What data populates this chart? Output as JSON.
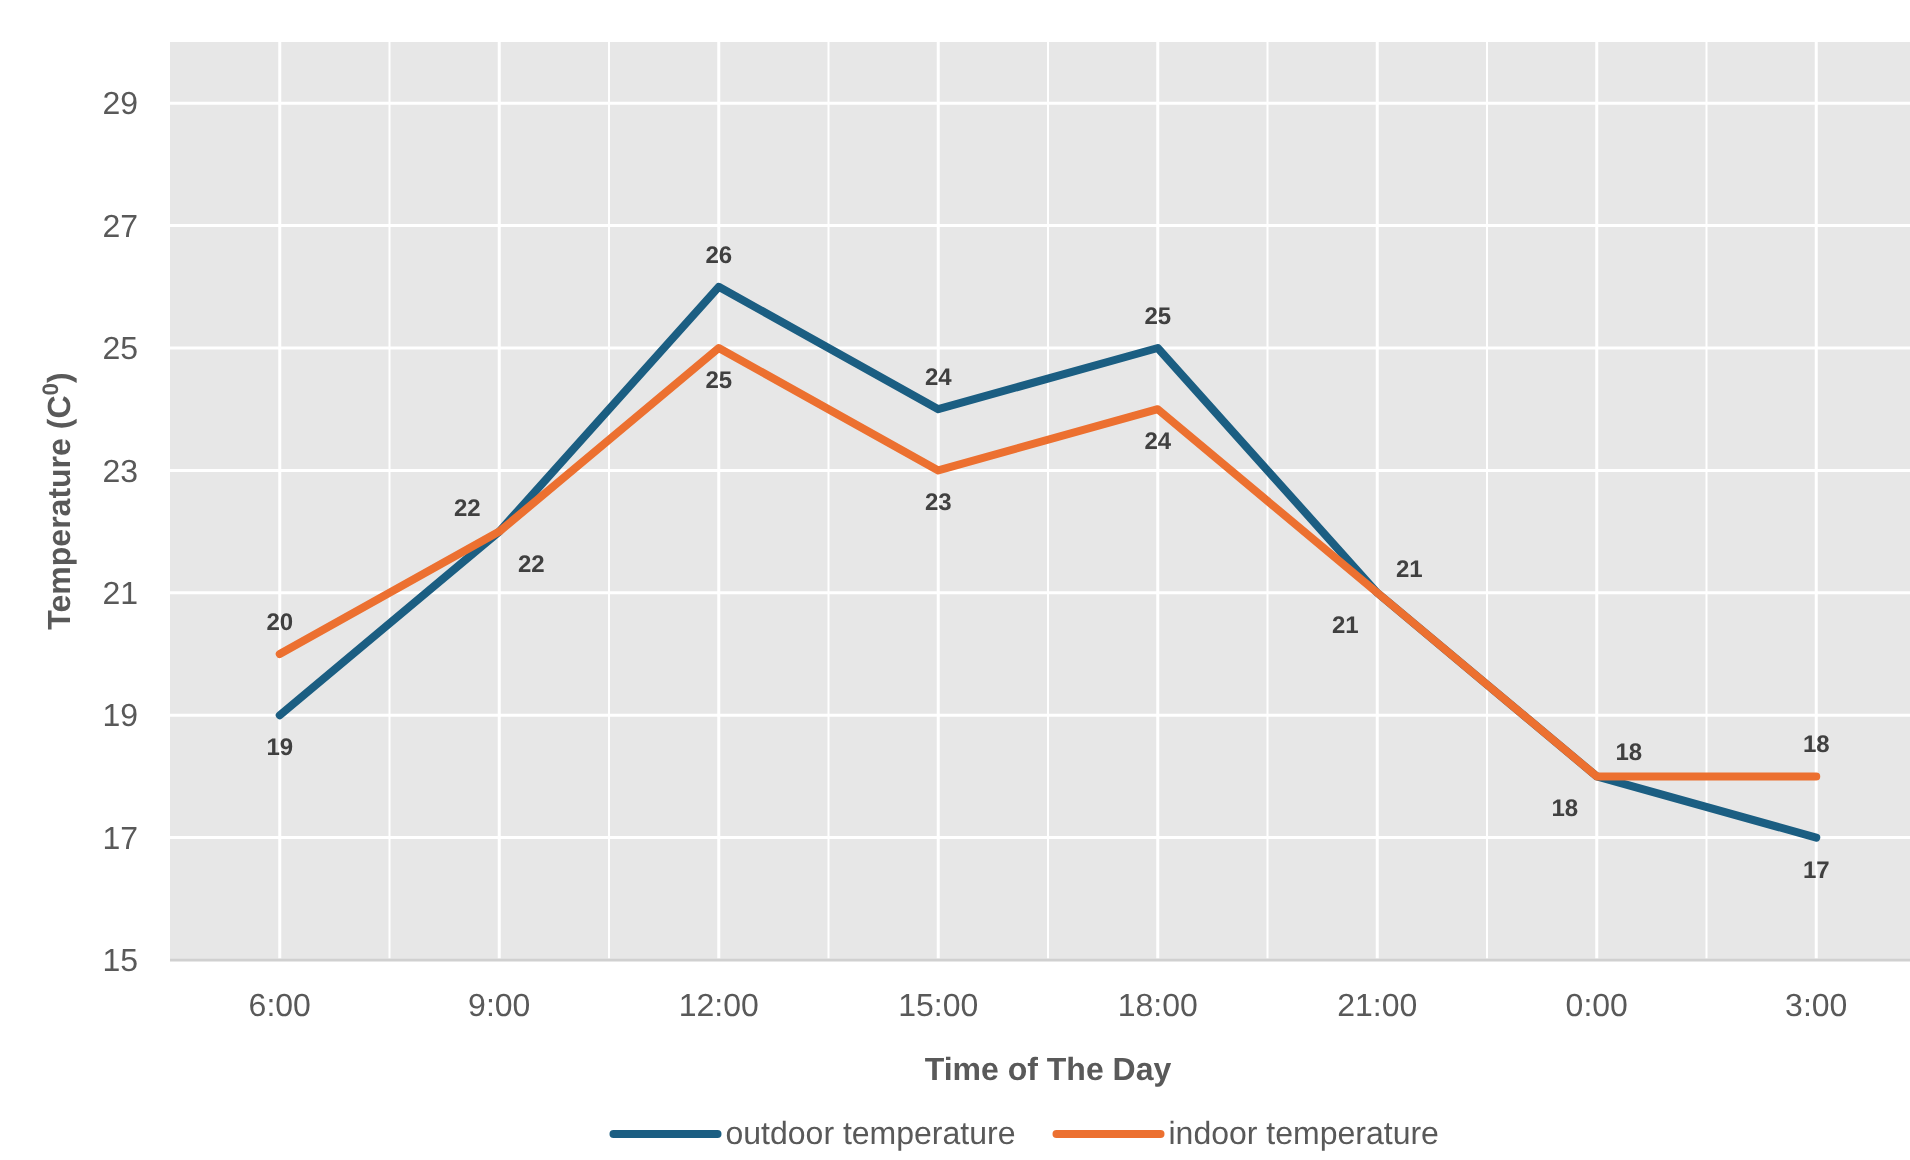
{
  "chart_data": {
    "type": "line",
    "xlabel": "Time of The Day",
    "ylabel": "Temperature (C$^{0}$)",
    "categories": [
      "6:00",
      "9:00",
      "12:00",
      "15:00",
      "18:00",
      "21:00",
      "0:00",
      "3:00"
    ],
    "series": [
      {
        "name": "outdoor temperature",
        "color": "#1b5e82",
        "values": [
          19,
          22,
          26,
          24,
          25,
          21,
          18,
          17
        ]
      },
      {
        "name": "indoor temperature",
        "color": "#ec7030",
        "values": [
          20,
          22,
          25,
          23,
          24,
          21,
          18,
          18
        ]
      }
    ],
    "ylim": [
      15,
      30
    ],
    "yticks": [
      15,
      17,
      19,
      21,
      23,
      25,
      27,
      29
    ],
    "grid": true,
    "legend": "bottom",
    "data_labels": true,
    "marker": "none",
    "line_style": "solid"
  }
}
